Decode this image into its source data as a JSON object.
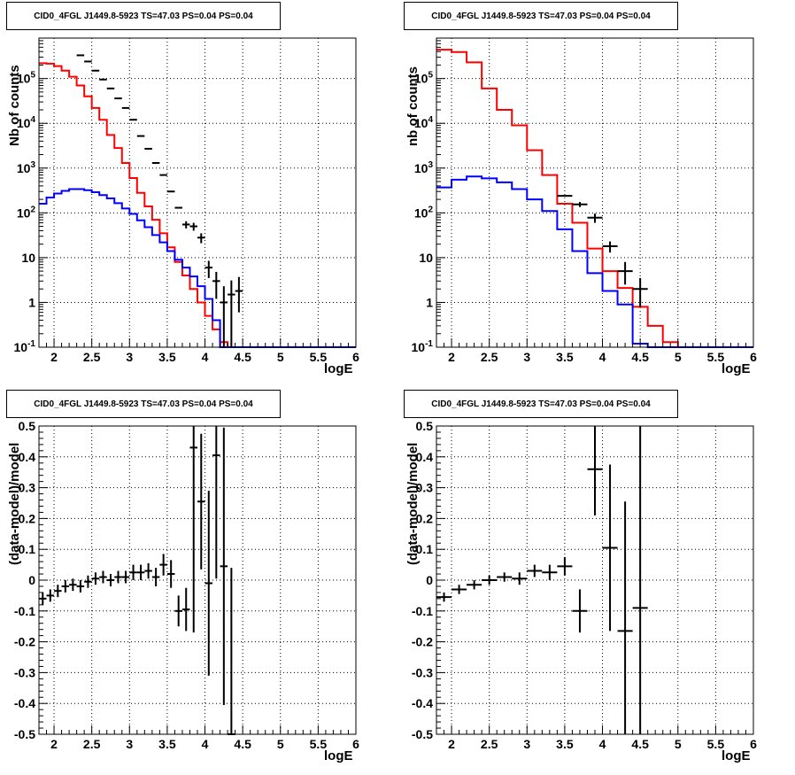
{
  "chart_data": [
    {
      "type": "line",
      "title": "CID0_4FGL J1449.8-5923 TS=47.03 PS=0.04 PS=0.04",
      "xlabel": "logE",
      "ylabel": "Nb of counts",
      "xlim": [
        1.8,
        6.0
      ],
      "ylim": [
        0.1,
        800000
      ],
      "yscale": "log",
      "grid": true,
      "xticklabels": [
        "2",
        "2.5",
        "3",
        "3.5",
        "4",
        "4.5",
        "5",
        "5.5",
        "6"
      ],
      "yticklabels": [
        "10^-1",
        "1",
        "10",
        "10^2",
        "10^3",
        "10^4",
        "10^5"
      ],
      "bin_width": 0.1,
      "series": [
        {
          "color": "#ff0000",
          "style": "step",
          "x": [
            1.8,
            1.9,
            2.0,
            2.1,
            2.2,
            2.3,
            2.4,
            2.5,
            2.6,
            2.7,
            2.8,
            2.9,
            3.0,
            3.1,
            3.2,
            3.3,
            3.4,
            3.5,
            3.6,
            3.7,
            3.8,
            3.9,
            4.0,
            4.1,
            4.2,
            4.3,
            4.4,
            4.5,
            4.6,
            4.7,
            4.8,
            4.9,
            5.0,
            5.1,
            5.2,
            5.3,
            5.4,
            5.5,
            5.6,
            5.7,
            5.8,
            5.9
          ],
          "y": [
            220000,
            215000,
            190000,
            150000,
            110000,
            70000,
            40000,
            22000,
            12000,
            5500,
            2800,
            1300,
            600,
            280,
            140,
            70,
            35,
            17,
            8,
            4,
            2,
            1,
            0.5,
            0.25,
            0.13,
            0.1,
            0.1,
            0.1,
            0.1,
            0.1,
            0.1,
            0.1,
            0.1,
            0.1,
            0.1,
            0.1,
            0.1,
            0.1,
            0.1,
            0.1,
            0.1,
            0.1
          ]
        },
        {
          "color": "#0000ff",
          "style": "step",
          "x": [
            1.8,
            1.9,
            2.0,
            2.1,
            2.2,
            2.3,
            2.4,
            2.5,
            2.6,
            2.7,
            2.8,
            2.9,
            3.0,
            3.1,
            3.2,
            3.3,
            3.4,
            3.5,
            3.6,
            3.7,
            3.8,
            3.9,
            4.0,
            4.1,
            4.2,
            4.3,
            4.4,
            4.5,
            4.6,
            4.7,
            4.8,
            4.9,
            5.0,
            5.1,
            5.2,
            5.3,
            5.4,
            5.5,
            5.6,
            5.7,
            5.8,
            5.9
          ],
          "y": [
            160,
            220,
            270,
            310,
            340,
            340,
            320,
            290,
            250,
            210,
            165,
            125,
            95,
            68,
            48,
            32,
            22,
            14,
            9,
            6,
            3.8,
            2.3,
            1.2,
            0.4,
            0.1,
            0.1,
            0.1,
            0.1,
            0.1,
            0.1,
            0.1,
            0.1,
            0.1,
            0.1,
            0.1,
            0.1,
            0.1,
            0.1,
            0.1,
            0.1,
            0.1,
            0.1
          ]
        },
        {
          "color": "#000000",
          "style": "errorbar",
          "x": [
            2.35,
            2.45,
            2.55,
            2.65,
            2.75,
            2.85,
            2.95,
            3.05,
            3.15,
            3.25,
            3.35,
            3.45,
            3.55,
            3.65,
            3.75,
            3.85,
            3.95,
            4.05,
            4.15,
            4.25,
            4.35,
            4.45
          ],
          "y": [
            330000,
            240000,
            150000,
            95000,
            60000,
            36000,
            22000,
            12000,
            5200,
            2700,
            1300,
            700,
            300,
            130,
            55,
            50,
            28,
            6,
            3,
            1,
            1.5,
            1.8
          ],
          "yerr_low": [
            0,
            0,
            0,
            0,
            0,
            0,
            0,
            0,
            0,
            0,
            0,
            0,
            0,
            0,
            10,
            10,
            7,
            2.5,
            1.8,
            0.9,
            1.45,
            1.2
          ],
          "yerr_high": [
            0,
            0,
            0,
            0,
            0,
            0,
            0,
            0,
            0,
            0,
            0,
            0,
            0,
            0,
            10,
            10,
            7,
            2.5,
            1.8,
            1.3,
            1.6,
            1.9
          ]
        }
      ]
    },
    {
      "type": "line",
      "title": "CID0_4FGL J1449.8-5923 TS=47.03 PS=0.04 PS=0.04",
      "xlabel": "logE",
      "ylabel": "nb of counts",
      "xlim": [
        1.8,
        6.0
      ],
      "ylim": [
        0.1,
        800000
      ],
      "yscale": "log",
      "grid": true,
      "xticklabels": [
        "2",
        "2.5",
        "3",
        "3.5",
        "4",
        "4.5",
        "5",
        "5.5",
        "6"
      ],
      "yticklabels": [
        "10^-1",
        "1",
        "10",
        "10^2",
        "10^3",
        "10^4",
        "10^5"
      ],
      "bin_width": 0.2,
      "series": [
        {
          "color": "#ff0000",
          "style": "step",
          "x": [
            1.8,
            2.0,
            2.2,
            2.4,
            2.6,
            2.8,
            3.0,
            3.2,
            3.4,
            3.6,
            3.8,
            4.0,
            4.2,
            4.4,
            4.6,
            4.8,
            5.0,
            5.2,
            5.4,
            5.6,
            5.8
          ],
          "y": [
            440000,
            390000,
            230000,
            60000,
            20000,
            9000,
            2500,
            700,
            160,
            60,
            16,
            5,
            2.1,
            0.8,
            0.3,
            0.13,
            0.1,
            0.1,
            0.1,
            0.1,
            0.1
          ]
        },
        {
          "color": "#0000ff",
          "style": "step",
          "x": [
            1.8,
            2.0,
            2.2,
            2.4,
            2.6,
            2.8,
            3.0,
            3.2,
            3.4,
            3.6,
            3.8,
            4.0,
            4.2,
            4.4,
            4.6,
            4.8,
            5.0,
            5.2,
            5.4,
            5.6,
            5.8
          ],
          "y": [
            370,
            550,
            650,
            590,
            480,
            340,
            200,
            110,
            43,
            14,
            4.5,
            1.8,
            0.9,
            0.12,
            0.1,
            0.1,
            0.1,
            0.1,
            0.1,
            0.1,
            0.1
          ]
        },
        {
          "color": "#000000",
          "style": "errorbar",
          "x": [
            3.5,
            3.7,
            3.9,
            4.1,
            4.3,
            4.5
          ],
          "y": [
            240,
            155,
            78,
            18,
            5,
            2
          ],
          "yerr_low": [
            0,
            20,
            18,
            5,
            2.5,
            1.2
          ],
          "yerr_high": [
            0,
            20,
            18,
            5,
            3,
            1.5
          ]
        }
      ]
    },
    {
      "type": "scatter",
      "title": "CID0_4FGL J1449.8-5923 TS=47.03 PS=0.04 PS=0.04",
      "xlabel": "logE",
      "ylabel": "(data-model)/model",
      "xlim": [
        1.8,
        6.0
      ],
      "ylim": [
        -0.5,
        0.5
      ],
      "grid": true,
      "xticklabels": [
        "2",
        "2.5",
        "3",
        "3.5",
        "4",
        "4.5",
        "5",
        "5.5",
        "6"
      ],
      "yticklabels": [
        "-0.5",
        "-0.4",
        "-0.3",
        "-0.2",
        "-0.1",
        "0",
        "0.1",
        "0.2",
        "0.3",
        "0.4",
        "0.5"
      ],
      "bin_width": 0.1,
      "series": [
        {
          "color": "#000000",
          "style": "errorbar",
          "x": [
            1.85,
            1.95,
            2.05,
            2.15,
            2.25,
            2.35,
            2.45,
            2.55,
            2.65,
            2.75,
            2.85,
            2.95,
            3.05,
            3.15,
            3.25,
            3.35,
            3.45,
            3.55,
            3.65,
            3.75,
            3.85,
            3.95,
            4.05,
            4.15,
            4.25,
            4.35
          ],
          "y": [
            -0.06,
            -0.05,
            -0.035,
            -0.02,
            -0.015,
            -0.02,
            -0.005,
            0.005,
            0.01,
            0.0,
            0.01,
            0.01,
            0.025,
            0.025,
            0.03,
            0.01,
            0.05,
            0.02,
            -0.1,
            -0.095,
            0.43,
            0.255,
            -0.01,
            0.405,
            0.045,
            -0.5
          ],
          "yerr": [
            0.02,
            0.02,
            0.02,
            0.02,
            0.02,
            0.02,
            0.02,
            0.02,
            0.02,
            0.02,
            0.02,
            0.02,
            0.025,
            0.025,
            0.025,
            0.03,
            0.035,
            0.045,
            0.05,
            0.07,
            0.6,
            0.22,
            0.3,
            0.4,
            0.45,
            0.54
          ]
        }
      ]
    },
    {
      "type": "scatter",
      "title": "CID0_4FGL J1449.8-5923 TS=47.03 PS=0.04 PS=0.04",
      "xlabel": "logE",
      "ylabel": "(data-model)/model",
      "xlim": [
        1.8,
        6.0
      ],
      "ylim": [
        -0.5,
        0.5
      ],
      "grid": true,
      "xticklabels": [
        "2",
        "2.5",
        "3",
        "3.5",
        "4",
        "4.5",
        "5",
        "5.5",
        "6"
      ],
      "yticklabels": [
        "-0.5",
        "-0.4",
        "-0.3",
        "-0.2",
        "-0.1",
        "0",
        "0.1",
        "0.2",
        "0.3",
        "0.4",
        "0.5"
      ],
      "bin_width": 0.2,
      "series": [
        {
          "color": "#000000",
          "style": "errorbar",
          "x": [
            1.9,
            2.1,
            2.3,
            2.5,
            2.7,
            2.9,
            3.1,
            3.3,
            3.5,
            3.7,
            3.9,
            4.1,
            4.3,
            4.5
          ],
          "y": [
            -0.055,
            -0.03,
            -0.015,
            0.0,
            0.01,
            0.005,
            0.03,
            0.025,
            0.045,
            -0.1,
            0.36,
            0.105,
            -0.165,
            -0.09
          ],
          "yerr": [
            0.015,
            0.015,
            0.015,
            0.015,
            0.015,
            0.02,
            0.02,
            0.025,
            0.03,
            0.07,
            0.15,
            0.27,
            0.42,
            0.6
          ]
        }
      ]
    }
  ]
}
